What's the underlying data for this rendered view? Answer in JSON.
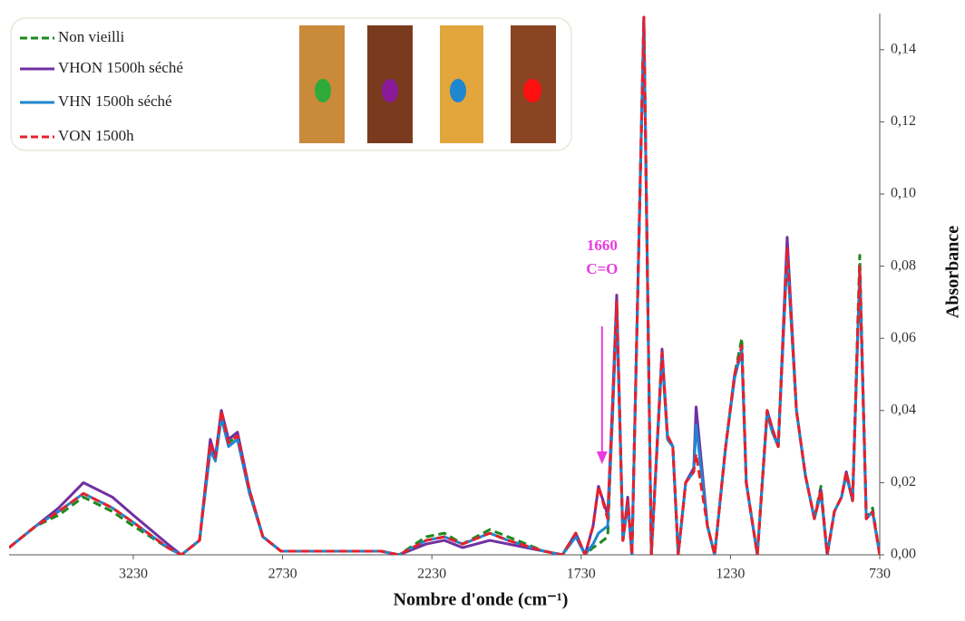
{
  "chart_data": {
    "type": "line",
    "x_label": "Nombre d'onde (cm⁻¹)",
    "y_label": "Absorbance",
    "x": [
      3646,
      3556,
      3480,
      3397,
      3300,
      3230,
      3115,
      3069,
      3008,
      2972,
      2955,
      2935,
      2911,
      2881,
      2841,
      2796,
      2735,
      2600,
      2500,
      2400,
      2340,
      2249,
      2188,
      2127,
      2036,
      1975,
      1854,
      1793,
      1748,
      1717,
      1690,
      1672,
      1641,
      1625,
      1611,
      1590,
      1574,
      1560,
      1520,
      1495,
      1459,
      1441,
      1423,
      1405,
      1380,
      1353,
      1345,
      1307,
      1283,
      1246,
      1216,
      1192,
      1177,
      1140,
      1107,
      1090,
      1070,
      1040,
      1009,
      979,
      949,
      927,
      906,
      882,
      858,
      842,
      821,
      797,
      775,
      754,
      730
    ],
    "series": [
      {
        "name": "Non vieilli",
        "color": "#1a8a1a",
        "dashed": true,
        "values": [
          0.002,
          0.008,
          0.011,
          0.016,
          0.012,
          0.008,
          0.002,
          0,
          0.004,
          0.031,
          0.027,
          0.04,
          0.031,
          0.033,
          0.018,
          0.005,
          0.001,
          0.001,
          0.001,
          0.001,
          0,
          0.005,
          0.006,
          0.003,
          0.007,
          0.005,
          0.001,
          0,
          0.006,
          0,
          0.002,
          0.003,
          0.005,
          0.04,
          0.07,
          0.004,
          0.015,
          0,
          0.149,
          0,
          0.056,
          0.033,
          0.03,
          0,
          0.02,
          0.024,
          0.037,
          0.008,
          0,
          0.03,
          0.05,
          0.06,
          0.02,
          0,
          0.04,
          0.035,
          0.03,
          0.086,
          0.04,
          0.022,
          0.01,
          0.019,
          0,
          0.012,
          0.016,
          0.023,
          0.015,
          0.083,
          0.01,
          0.013,
          0
        ]
      },
      {
        "name": "VHON 1500h  séché",
        "color": "#7030a0",
        "dashed": false,
        "values": [
          0.002,
          0.008,
          0.013,
          0.02,
          0.016,
          0.011,
          0.003,
          0,
          0.004,
          0.032,
          0.027,
          0.04,
          0.032,
          0.034,
          0.018,
          0.005,
          0.001,
          0.001,
          0.001,
          0.001,
          0,
          0.003,
          0.004,
          0.002,
          0.004,
          0.003,
          0.001,
          0,
          0.006,
          0,
          0.008,
          0.019,
          0.011,
          0.042,
          0.072,
          0.004,
          0.016,
          0,
          0.149,
          0,
          0.057,
          0.033,
          0.03,
          0,
          0.02,
          0.024,
          0.041,
          0.008,
          0,
          0.03,
          0.05,
          0.056,
          0.02,
          0,
          0.04,
          0.035,
          0.03,
          0.088,
          0.04,
          0.022,
          0.01,
          0.018,
          0,
          0.012,
          0.016,
          0.023,
          0.015,
          0.079,
          0.01,
          0.012,
          0
        ]
      },
      {
        "name": "VHN 1500h séché",
        "color": "#1f86d0",
        "dashed": false,
        "values": [
          0.002,
          0.008,
          0.012,
          0.017,
          0.013,
          0.009,
          0.002,
          0,
          0.004,
          0.029,
          0.026,
          0.038,
          0.03,
          0.032,
          0.017,
          0.005,
          0.001,
          0.001,
          0.001,
          0.001,
          0,
          0.004,
          0.005,
          0.003,
          0.006,
          0.004,
          0.001,
          0,
          0.005,
          0,
          0.003,
          0.006,
          0.008,
          0.038,
          0.068,
          0.004,
          0.014,
          0,
          0.149,
          0,
          0.055,
          0.032,
          0.03,
          0,
          0.02,
          0.023,
          0.036,
          0.008,
          0,
          0.03,
          0.049,
          0.057,
          0.02,
          0,
          0.039,
          0.034,
          0.03,
          0.083,
          0.04,
          0.022,
          0.01,
          0.017,
          0,
          0.012,
          0.016,
          0.022,
          0.015,
          0.078,
          0.01,
          0.012,
          0
        ]
      },
      {
        "name": "VON 1500h",
        "color": "#e8202a",
        "dashed": true,
        "values": [
          0.002,
          0.008,
          0.012,
          0.017,
          0.013,
          0.009,
          0.002,
          0,
          0.004,
          0.031,
          0.027,
          0.04,
          0.031,
          0.033,
          0.018,
          0.005,
          0.001,
          0.001,
          0.001,
          0.001,
          0,
          0.004,
          0.005,
          0.003,
          0.006,
          0.004,
          0.001,
          0,
          0.006,
          0,
          0.008,
          0.019,
          0.01,
          0.04,
          0.07,
          0.004,
          0.015,
          0,
          0.149,
          0,
          0.056,
          0.033,
          0.03,
          0,
          0.02,
          0.023,
          0.028,
          0.008,
          0,
          0.03,
          0.05,
          0.058,
          0.02,
          0,
          0.04,
          0.035,
          0.03,
          0.085,
          0.04,
          0.022,
          0.01,
          0.018,
          0,
          0.012,
          0.016,
          0.023,
          0.015,
          0.08,
          0.01,
          0.012,
          0
        ]
      }
    ],
    "xlim": [
      3646,
      730
    ],
    "xticks": [
      3230,
      2730,
      2230,
      1730,
      1230,
      730
    ],
    "ylim": [
      0,
      0.15
    ],
    "yticks": [
      {
        "value": 0,
        "label": "0,00"
      },
      {
        "value": 0.02,
        "label": "0,02"
      },
      {
        "value": 0.04,
        "label": "0,04"
      },
      {
        "value": 0.06,
        "label": "0,06"
      },
      {
        "value": 0.08,
        "label": "0,08"
      },
      {
        "value": 0.1,
        "label": "0,10"
      },
      {
        "value": 0.12,
        "label": "0,12"
      },
      {
        "value": 0.14,
        "label": "0,14"
      }
    ],
    "annotation": {
      "lines": [
        "1660",
        "C=O"
      ],
      "x": 1660,
      "color": "#e83ce0"
    }
  }
}
